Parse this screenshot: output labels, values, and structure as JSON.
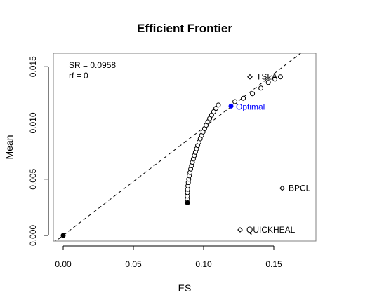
{
  "chart_data": {
    "type": "scatter",
    "title": "Efficient Frontier",
    "xlabel": "ES",
    "ylabel": "Mean",
    "xlim": [
      -0.007,
      0.18
    ],
    "ylim": [
      -0.0005,
      0.0162
    ],
    "x_ticks": [
      "0.00",
      "0.05",
      "0.10",
      "0.15"
    ],
    "x_tick_values": [
      0.0,
      0.05,
      0.1,
      0.15
    ],
    "y_ticks": [
      "0.000",
      "0.005",
      "0.010",
      "0.015"
    ],
    "y_tick_values": [
      0.0,
      0.005,
      0.01,
      0.015
    ],
    "grid": false,
    "annotation": {
      "line1": "SR = 0.0958",
      "line2": "rf = 0"
    },
    "tangent_line": {
      "slope": 0.0958,
      "intercept": 0,
      "style": "dashed",
      "color": "#000000"
    },
    "frontier": [
      [
        0.0885,
        0.0029
      ],
      [
        0.0884,
        0.0032
      ],
      [
        0.0884,
        0.0035
      ],
      [
        0.0885,
        0.0038
      ],
      [
        0.0886,
        0.0041
      ],
      [
        0.0888,
        0.0044
      ],
      [
        0.0891,
        0.0047
      ],
      [
        0.0894,
        0.005
      ],
      [
        0.0898,
        0.0053
      ],
      [
        0.0903,
        0.0056
      ],
      [
        0.0908,
        0.0059
      ],
      [
        0.0914,
        0.0062
      ],
      [
        0.092,
        0.0065
      ],
      [
        0.0927,
        0.0068
      ],
      [
        0.0934,
        0.0071
      ],
      [
        0.0942,
        0.0074
      ],
      [
        0.095,
        0.0077
      ],
      [
        0.0958,
        0.008
      ],
      [
        0.0967,
        0.0083
      ],
      [
        0.0976,
        0.0086
      ],
      [
        0.0986,
        0.0089
      ],
      [
        0.0996,
        0.0092
      ],
      [
        0.1007,
        0.0095
      ],
      [
        0.1018,
        0.0098
      ],
      [
        0.103,
        0.0101
      ],
      [
        0.1043,
        0.0104
      ],
      [
        0.1057,
        0.0107
      ],
      [
        0.1072,
        0.011
      ],
      [
        0.1088,
        0.0113
      ],
      [
        0.1105,
        0.0116
      ],
      [
        0.1223,
        0.0119
      ],
      [
        0.1283,
        0.0122
      ],
      [
        0.1348,
        0.0126
      ],
      [
        0.1408,
        0.0131
      ],
      [
        0.1461,
        0.0136
      ],
      [
        0.1508,
        0.0139
      ],
      [
        0.1547,
        0.0141
      ]
    ],
    "filled_points": [
      {
        "x": 0.0,
        "y": 0.0,
        "label": ""
      },
      {
        "x": 0.0885,
        "y": 0.0029,
        "label": ""
      }
    ],
    "optimal": {
      "x": 0.1195,
      "y": 0.0115,
      "label": "Optimal",
      "color": "#0000ff"
    },
    "assets": [
      {
        "name": "TSLA",
        "x": 0.133,
        "y": 0.0141
      },
      {
        "name": "BPCL",
        "x": 0.156,
        "y": 0.0042
      },
      {
        "name": "QUICKHEAL",
        "x": 0.126,
        "y": 0.0005
      }
    ]
  }
}
